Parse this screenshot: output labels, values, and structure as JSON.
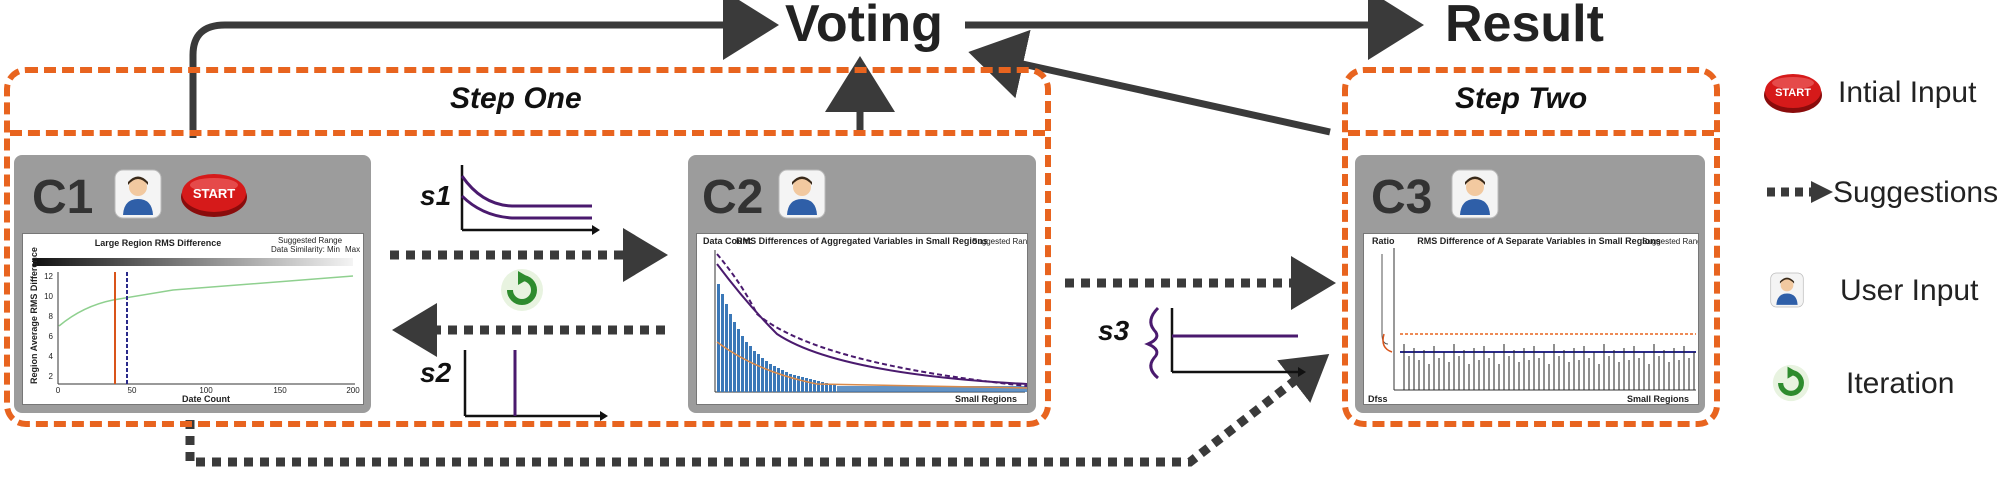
{
  "header": {
    "voting": "Voting",
    "result": "Result"
  },
  "steps": {
    "one": "Step One",
    "two": "Step Two"
  },
  "panels": {
    "c1": {
      "label": "C1",
      "screenshot": {
        "title": "Large Region RMS Difference",
        "legend_suggested": "Suggested Range",
        "legend_similarity": "Data Similarity: Min",
        "legend_max": "Max",
        "ylabel": "Region Average RMS Difference",
        "xlabel": "Date Count",
        "xticks": [
          "0",
          "50",
          "100",
          "150",
          "200"
        ],
        "yticks": [
          "12",
          "10",
          "8",
          "6",
          "4",
          "2"
        ]
      }
    },
    "c2": {
      "label": "C2",
      "screenshot": {
        "title": "RMS Differences of Aggregated Variables in Small Regions",
        "legend_suggested": "Suggested Range",
        "ylabel": "Data Count",
        "xlabel": "Small Regions"
      }
    },
    "c3": {
      "label": "C3",
      "screenshot": {
        "title": "RMS Difference of A Separate Variables in Small Regions",
        "legend_suggested": "Suggested Range",
        "ylabel": "Ratio",
        "xlabel": "Small Regions",
        "corner": "Dfss"
      }
    }
  },
  "badges": {
    "start": "START"
  },
  "suggestion_labels": {
    "s1": "s1",
    "s2": "s2",
    "s3": "s3"
  },
  "legend": {
    "initial_input": "Intial Input",
    "suggestions": "Suggestions",
    "user_input": "User Input",
    "iteration": "Iteration"
  },
  "colors": {
    "orange_border": "#e8641f",
    "arrow": "#3a3a3a",
    "panel_bg": "#9c9c9c",
    "curve": "#4a1a6e",
    "start_red": "#cc1a1a",
    "iteration_green": "#2e8b2e"
  }
}
